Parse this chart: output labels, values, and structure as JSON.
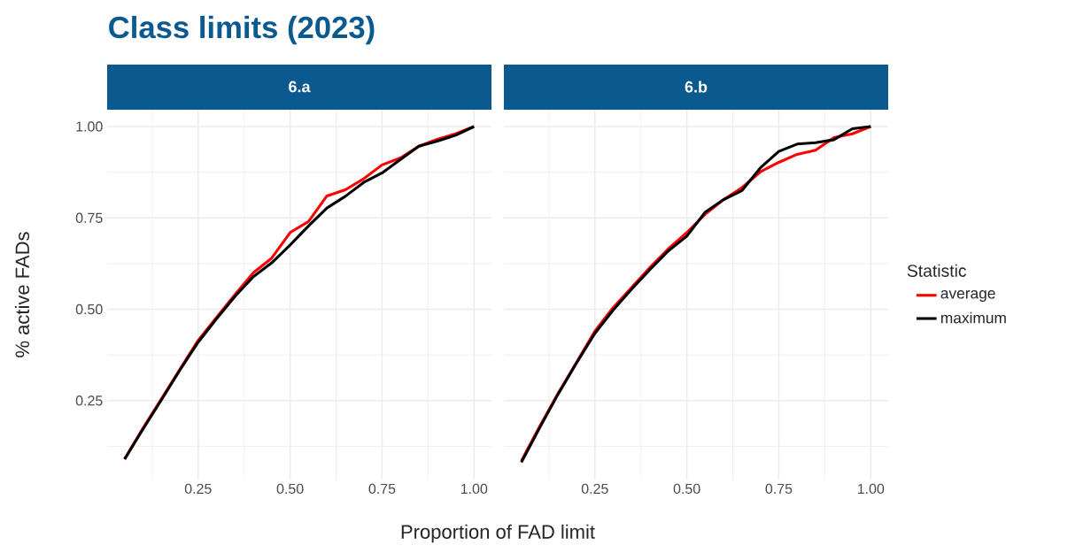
{
  "chart_data": [
    {
      "type": "line",
      "title": "Class limits (2023)",
      "subtitle": "6.a",
      "xlabel": "Proportion of FAD limit",
      "ylabel": "% active FADs",
      "x": [
        0.05,
        0.1,
        0.15,
        0.2,
        0.25,
        0.3,
        0.35,
        0.4,
        0.45,
        0.5,
        0.55,
        0.6,
        0.65,
        0.7,
        0.75,
        0.8,
        0.85,
        0.9,
        0.95,
        1.0
      ],
      "series": [
        {
          "color": "#ff0000",
          "values": [
            0.09,
            0.175,
            0.255,
            0.335,
            0.415,
            0.478,
            0.54,
            0.6,
            0.64,
            0.71,
            0.74,
            0.81,
            0.827,
            0.857,
            0.895,
            0.914,
            0.946,
            0.965,
            0.98,
            1.0
          ]
        },
        {
          "color": "#000000",
          "values": [
            0.09,
            0.172,
            0.252,
            0.333,
            0.41,
            0.474,
            0.535,
            0.589,
            0.627,
            0.676,
            0.728,
            0.777,
            0.809,
            0.847,
            0.873,
            0.91,
            0.946,
            0.96,
            0.976,
            1.0
          ]
        }
      ],
      "xlim": [
        0.0025,
        1.0475
      ],
      "ylim": [
        0.034,
        1.046
      ],
      "xticks": [
        {
          "value": 0.25,
          "label": "0.25"
        },
        {
          "value": 0.5,
          "label": "0.50"
        },
        {
          "value": 0.75,
          "label": "0.75"
        },
        {
          "value": 1.0,
          "label": "1.00"
        }
      ],
      "yticks": [
        {
          "value": 0.25,
          "label": "0.25"
        },
        {
          "value": 0.5,
          "label": "0.50"
        },
        {
          "value": 0.75,
          "label": "0.75"
        },
        {
          "value": 1.0,
          "label": "1.00"
        }
      ],
      "grid": true,
      "marker": "none",
      "line_style": "solid"
    },
    {
      "type": "line",
      "subtitle": "6.b",
      "legend_title": "Statistic",
      "x": [
        0.05,
        0.1,
        0.15,
        0.2,
        0.25,
        0.3,
        0.35,
        0.4,
        0.45,
        0.5,
        0.55,
        0.6,
        0.65,
        0.7,
        0.75,
        0.8,
        0.85,
        0.9,
        0.95,
        1.0
      ],
      "series": [
        {
          "name": "average",
          "color": "#ff0000",
          "values": [
            0.085,
            0.18,
            0.27,
            0.355,
            0.44,
            0.505,
            0.56,
            0.615,
            0.666,
            0.71,
            0.76,
            0.8,
            0.833,
            0.876,
            0.902,
            0.924,
            0.935,
            0.97,
            0.98,
            1.0
          ]
        },
        {
          "name": "maximum",
          "color": "#000000",
          "values": [
            0.081,
            0.176,
            0.268,
            0.353,
            0.434,
            0.498,
            0.555,
            0.609,
            0.66,
            0.7,
            0.766,
            0.8,
            0.825,
            0.887,
            0.932,
            0.952,
            0.956,
            0.964,
            0.994,
            1.0
          ]
        }
      ],
      "xlim": [
        0.0025,
        1.0475
      ],
      "ylim": [
        0.034,
        1.046
      ],
      "xticks": [
        {
          "value": 0.25,
          "label": "0.25"
        },
        {
          "value": 0.5,
          "label": "0.50"
        },
        {
          "value": 0.75,
          "label": "0.75"
        },
        {
          "value": 1.0,
          "label": "1.00"
        }
      ],
      "yticks": [
        {
          "value": 0.25,
          "label": null
        },
        {
          "value": 0.5,
          "label": null
        },
        {
          "value": 0.75,
          "label": null
        },
        {
          "value": 1.0,
          "label": null
        }
      ],
      "grid": true,
      "legend": "right",
      "tick_labels": "x",
      "marker": "none",
      "line_style": "solid"
    }
  ]
}
